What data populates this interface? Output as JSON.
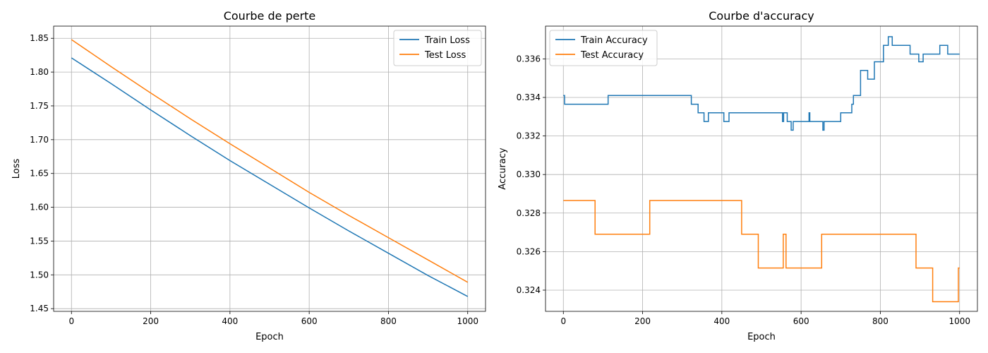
{
  "chart_data": [
    {
      "type": "line",
      "title": "Courbe de perte",
      "xlabel": "Epoch",
      "ylabel": "Loss",
      "xlim": [
        -45,
        1045
      ],
      "ylim": [
        1.446,
        1.868
      ],
      "xticks": [
        0,
        200,
        400,
        600,
        800,
        1000
      ],
      "yticks": [
        1.45,
        1.5,
        1.55,
        1.6,
        1.65,
        1.7,
        1.75,
        1.8,
        1.85
      ],
      "ytick_labels": [
        "1.45",
        "1.50",
        "1.55",
        "1.60",
        "1.65",
        "1.70",
        "1.75",
        "1.80",
        "1.85"
      ],
      "grid": true,
      "legend_position": "upper right",
      "series": [
        {
          "name": "Train Loss",
          "color": "#1f77b4",
          "x": [
            0,
            100,
            200,
            300,
            400,
            500,
            600,
            700,
            800,
            900,
            1000
          ],
          "y": [
            1.821,
            1.783,
            1.744,
            1.706,
            1.669,
            1.634,
            1.599,
            1.565,
            1.532,
            1.499,
            1.468
          ]
        },
        {
          "name": "Test Loss",
          "color": "#ff7f0e",
          "x": [
            0,
            100,
            200,
            300,
            400,
            500,
            600,
            700,
            800,
            900,
            1000
          ],
          "y": [
            1.848,
            1.808,
            1.769,
            1.731,
            1.694,
            1.658,
            1.622,
            1.588,
            1.555,
            1.522,
            1.489
          ]
        }
      ]
    },
    {
      "type": "line",
      "title": "Courbe d'accuracy",
      "xlabel": "Epoch",
      "ylabel": "Accuracy",
      "xlim": [
        -45,
        1045
      ],
      "ylim": [
        0.3229,
        0.3377
      ],
      "xticks": [
        0,
        200,
        400,
        600,
        800,
        1000
      ],
      "yticks": [
        0.324,
        0.326,
        0.328,
        0.33,
        0.332,
        0.334,
        0.336
      ],
      "ytick_labels": [
        "0.324",
        "0.326",
        "0.328",
        "0.330",
        "0.332",
        "0.334",
        "0.336"
      ],
      "grid": true,
      "legend_position": "upper left",
      "series": [
        {
          "name": "Train Accuracy",
          "color": "#1f77b4",
          "step": true,
          "x": [
            0,
            3,
            113,
            323,
            340,
            355,
            366,
            380,
            405,
            418,
            553,
            556,
            565,
            575,
            580,
            620,
            622,
            655,
            658,
            700,
            728,
            732,
            750,
            768,
            785,
            808,
            812,
            820,
            830,
            875,
            897,
            908,
            950,
            970,
            1000
          ],
          "y": [
            0.3341,
            0.33365,
            0.3341,
            0.33365,
            0.3332,
            0.33275,
            0.3332,
            0.3332,
            0.33275,
            0.3332,
            0.33275,
            0.3332,
            0.33275,
            0.3323,
            0.33275,
            0.3332,
            0.33275,
            0.3323,
            0.33275,
            0.3332,
            0.33365,
            0.3341,
            0.3354,
            0.33495,
            0.33585,
            0.3367,
            0.3367,
            0.33715,
            0.3367,
            0.33625,
            0.33585,
            0.33625,
            0.3367,
            0.33625,
            0.33625
          ]
        },
        {
          "name": "Test Accuracy",
          "color": "#ff7f0e",
          "step": true,
          "x": [
            0,
            80,
            218,
            450,
            492,
            555,
            562,
            652,
            890,
            932,
            997,
            1000
          ],
          "y": [
            0.32865,
            0.3269,
            0.32865,
            0.3269,
            0.32515,
            0.3269,
            0.32515,
            0.3269,
            0.32515,
            0.3234,
            0.32515,
            0.32515
          ]
        }
      ]
    }
  ]
}
